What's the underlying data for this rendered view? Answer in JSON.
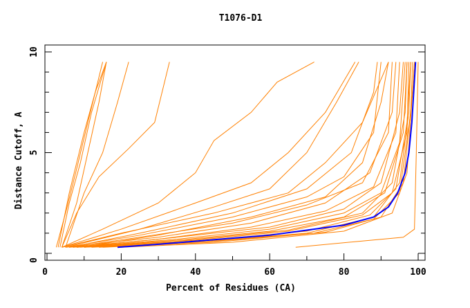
{
  "chart_data": {
    "type": "line",
    "title": "T1076-D1",
    "xlabel": "Percent of Residues (CA)",
    "ylabel": "Distance Cutoff, A",
    "xlim": [
      0,
      100
    ],
    "ylim": [
      0,
      10
    ],
    "x_ticks": [
      "0",
      "20",
      "40",
      "60",
      "80",
      "100"
    ],
    "y_ticks": [
      "0",
      "5",
      "10"
    ],
    "grid": false,
    "colors": {
      "models": "#ff8000",
      "highlight": "#0000ff"
    },
    "highlight_series": [
      [
        19,
        0.3
      ],
      [
        30,
        0.45
      ],
      [
        40,
        0.6
      ],
      [
        50,
        0.75
      ],
      [
        60,
        0.9
      ],
      [
        70,
        1.15
      ],
      [
        80,
        1.4
      ],
      [
        88,
        1.8
      ],
      [
        92,
        2.3
      ],
      [
        94.5,
        3
      ],
      [
        96.5,
        4
      ],
      [
        97.5,
        5
      ],
      [
        98.3,
        6.5
      ],
      [
        98.8,
        8
      ],
      [
        99.3,
        9.5
      ]
    ],
    "series": [
      [
        [
          2.5,
          0.3
        ],
        [
          5,
          2
        ],
        [
          8,
          4.2
        ],
        [
          11,
          6.5
        ],
        [
          13,
          8
        ],
        [
          16,
          9.5
        ]
      ],
      [
        [
          3,
          0.3
        ],
        [
          6,
          3
        ],
        [
          10,
          6
        ],
        [
          13,
          8
        ],
        [
          15,
          9.5
        ]
      ],
      [
        [
          4,
          0.3
        ],
        [
          8,
          2.5
        ],
        [
          11,
          5
        ],
        [
          14,
          7.5
        ],
        [
          16,
          9.5
        ]
      ],
      [
        [
          3.5,
          0.3
        ],
        [
          6,
          2.5
        ],
        [
          9,
          4.5
        ],
        [
          12,
          7
        ],
        [
          16,
          9.5
        ]
      ],
      [
        [
          5,
          0.3
        ],
        [
          10,
          3
        ],
        [
          15,
          5
        ],
        [
          19,
          7.5
        ],
        [
          22,
          9.5
        ]
      ],
      [
        [
          4,
          0.3
        ],
        [
          8,
          2
        ],
        [
          14,
          3.8
        ],
        [
          22,
          5.2
        ],
        [
          29,
          6.5
        ],
        [
          33,
          9.5
        ]
      ],
      [
        [
          4,
          0.3
        ],
        [
          15,
          1.2
        ],
        [
          30,
          2.5
        ],
        [
          40,
          4
        ],
        [
          45,
          5.6
        ],
        [
          55,
          7
        ],
        [
          62,
          8.5
        ],
        [
          72,
          9.5
        ]
      ],
      [
        [
          4,
          0.3
        ],
        [
          20,
          1.2
        ],
        [
          40,
          2.5
        ],
        [
          55,
          3.5
        ],
        [
          65,
          5
        ],
        [
          75,
          7
        ],
        [
          83,
          9.5
        ]
      ],
      [
        [
          5,
          0.3
        ],
        [
          25,
          1.2
        ],
        [
          45,
          2.3
        ],
        [
          60,
          3.2
        ],
        [
          70,
          5
        ],
        [
          78,
          7.5
        ],
        [
          84,
          9.5
        ]
      ],
      [
        [
          4,
          0.3
        ],
        [
          20,
          1
        ],
        [
          45,
          2
        ],
        [
          65,
          3
        ],
        [
          75,
          4.5
        ],
        [
          85,
          6.5
        ],
        [
          92,
          9.5
        ]
      ],
      [
        [
          5,
          0.3
        ],
        [
          25,
          0.9
        ],
        [
          50,
          1.8
        ],
        [
          70,
          2.8
        ],
        [
          80,
          3.8
        ],
        [
          88,
          6
        ],
        [
          90,
          9.5
        ]
      ],
      [
        [
          6,
          0.3
        ],
        [
          25,
          0.8
        ],
        [
          50,
          1.5
        ],
        [
          70,
          2.4
        ],
        [
          85,
          3.5
        ],
        [
          92,
          6
        ],
        [
          93,
          9.5
        ]
      ],
      [
        [
          5,
          0.3
        ],
        [
          30,
          0.8
        ],
        [
          55,
          1.5
        ],
        [
          75,
          2.5
        ],
        [
          87,
          4
        ],
        [
          93,
          7
        ],
        [
          94,
          9.5
        ]
      ],
      [
        [
          6,
          0.3
        ],
        [
          30,
          0.7
        ],
        [
          55,
          1.3
        ],
        [
          75,
          2.1
        ],
        [
          88,
          3.3
        ],
        [
          94,
          6
        ],
        [
          95,
          9.5
        ]
      ],
      [
        [
          7,
          0.3
        ],
        [
          30,
          0.7
        ],
        [
          60,
          1.3
        ],
        [
          80,
          2.2
        ],
        [
          90,
          3.5
        ],
        [
          95,
          7
        ],
        [
          96,
          9.5
        ]
      ],
      [
        [
          7,
          0.3
        ],
        [
          35,
          0.7
        ],
        [
          60,
          1.2
        ],
        [
          80,
          2
        ],
        [
          90,
          3
        ],
        [
          95,
          5.5
        ],
        [
          96.5,
          9.5
        ]
      ],
      [
        [
          8,
          0.3
        ],
        [
          35,
          0.65
        ],
        [
          60,
          1.1
        ],
        [
          80,
          1.8
        ],
        [
          91,
          3
        ],
        [
          96,
          6
        ],
        [
          97,
          9.5
        ]
      ],
      [
        [
          8,
          0.3
        ],
        [
          35,
          0.6
        ],
        [
          65,
          1.15
        ],
        [
          85,
          2
        ],
        [
          93,
          3.5
        ],
        [
          96.5,
          7
        ],
        [
          97,
          9.5
        ]
      ],
      [
        [
          10,
          0.3
        ],
        [
          40,
          0.65
        ],
        [
          65,
          1.1
        ],
        [
          85,
          1.9
        ],
        [
          93,
          3
        ],
        [
          97,
          6
        ],
        [
          97.5,
          9.5
        ]
      ],
      [
        [
          10,
          0.3
        ],
        [
          40,
          0.6
        ],
        [
          70,
          1.1
        ],
        [
          87,
          1.9
        ],
        [
          94,
          3.2
        ],
        [
          97,
          6.5
        ],
        [
          98,
          9.5
        ]
      ],
      [
        [
          12,
          0.3
        ],
        [
          40,
          0.55
        ],
        [
          70,
          1
        ],
        [
          88,
          1.8
        ],
        [
          95,
          3.5
        ],
        [
          97.5,
          7
        ],
        [
          98,
          9.5
        ]
      ],
      [
        [
          14,
          0.3
        ],
        [
          45,
          0.6
        ],
        [
          72,
          1
        ],
        [
          88,
          1.7
        ],
        [
          95,
          3
        ],
        [
          98,
          7
        ],
        [
          98.5,
          9.5
        ]
      ],
      [
        [
          15,
          0.3
        ],
        [
          45,
          0.55
        ],
        [
          75,
          1.05
        ],
        [
          90,
          1.8
        ],
        [
          96,
          3.5
        ],
        [
          98.5,
          8
        ],
        [
          99,
          9.5
        ]
      ],
      [
        [
          9,
          0.3
        ],
        [
          30,
          0.9
        ],
        [
          55,
          1.8
        ],
        [
          75,
          2.8
        ],
        [
          85,
          4.5
        ],
        [
          90,
          7.5
        ],
        [
          92,
          9.5
        ]
      ],
      [
        [
          6,
          0.3
        ],
        [
          25,
          1
        ],
        [
          50,
          2
        ],
        [
          70,
          3.2
        ],
        [
          82,
          5
        ],
        [
          88,
          8
        ],
        [
          89,
          9.5
        ]
      ],
      [
        [
          20,
          0.3
        ],
        [
          50,
          0.55
        ],
        [
          80,
          1.1
        ],
        [
          93,
          2
        ],
        [
          97,
          4
        ],
        [
          99,
          9.5
        ]
      ],
      [
        [
          67,
          0.3
        ],
        [
          96,
          0.8
        ],
        [
          99,
          1.2
        ],
        [
          99.5,
          5
        ],
        [
          100,
          9.5
        ]
      ]
    ]
  }
}
